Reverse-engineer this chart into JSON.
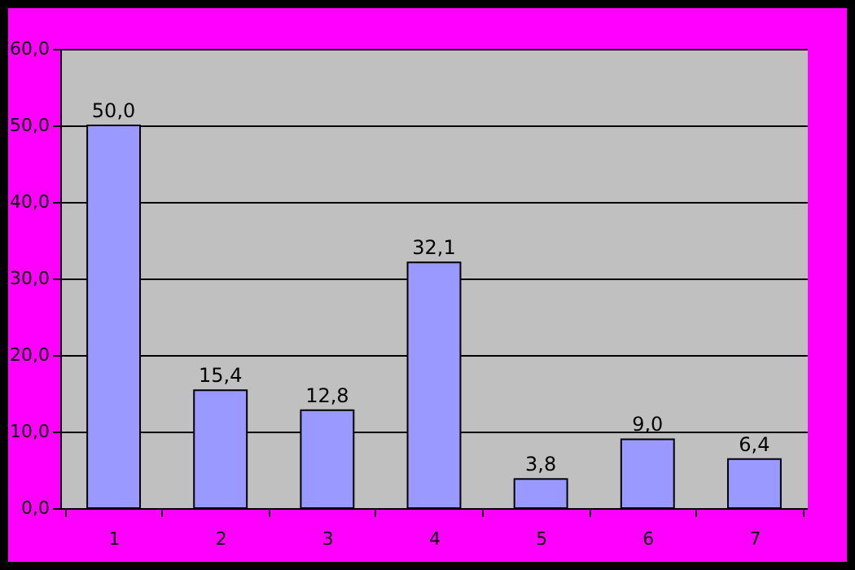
{
  "chart_data": {
    "type": "bar",
    "categories": [
      "1",
      "2",
      "3",
      "4",
      "5",
      "6",
      "7"
    ],
    "values": [
      50.0,
      15.4,
      12.8,
      32.1,
      3.8,
      9.0,
      6.4
    ],
    "value_labels": [
      "50,0",
      "15,4",
      "12,8",
      "32,1",
      "3,8",
      "9,0",
      "6,4"
    ],
    "color": "#9999ff",
    "ylim": [
      0,
      60
    ],
    "yticks": [
      {
        "value": 0,
        "label": "0,0"
      },
      {
        "value": 10,
        "label": "10,0"
      },
      {
        "value": 20,
        "label": "20,0"
      },
      {
        "value": 30,
        "label": "30,0"
      },
      {
        "value": 40,
        "label": "40,0"
      },
      {
        "value": 50,
        "label": "50,0"
      },
      {
        "value": 60,
        "label": "60,0"
      }
    ],
    "grid": "y"
  }
}
